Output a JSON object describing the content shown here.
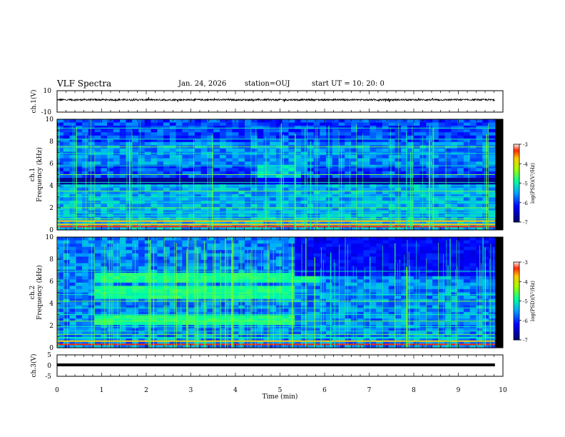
{
  "header": {
    "title": "VLF Spectra",
    "date": "Jan. 24, 2026",
    "station": "station=OUJ",
    "start": "start  UT  =    10: 20: 0"
  },
  "chart_data": [
    {
      "type": "line",
      "name": "channel-1-waveform",
      "ylabel": "ch.1(V)",
      "ylim": [
        -10,
        10
      ],
      "yticks": [
        "10",
        "-10"
      ],
      "mean_level": 1.5,
      "noise_amplitude": 0.8
    },
    {
      "type": "heatmap",
      "name": "channel-1-spectrogram",
      "ylabel_top": "ch.1",
      "ylabel": "Frequency  (kHz)",
      "ylim": [
        0,
        10
      ],
      "yticks": [
        "0",
        "2",
        "4",
        "6",
        "8",
        "10"
      ],
      "colorbar": {
        "label": "log(PSD)(V²/Hz)",
        "range": [
          -7,
          -3
        ],
        "ticks": [
          "-3",
          "-4",
          "-5",
          "-6",
          "-7"
        ]
      },
      "lines_khz": [
        0.3,
        0.5,
        0.8,
        1.0,
        1.3,
        1.6,
        2.0,
        2.5,
        3.0,
        3.5,
        4.0,
        4.3,
        5.0,
        5.8,
        6.9,
        7.5,
        8.2,
        9.2
      ],
      "features": {
        "sferics_dense": true,
        "band_ends_min": 5.4
      }
    },
    {
      "type": "heatmap",
      "name": "channel-2-spectrogram",
      "ylabel_top": "ch.2",
      "ylabel": "Frequency  (kHz)",
      "ylim": [
        0,
        10
      ],
      "yticks": [
        "0",
        "2",
        "4",
        "6",
        "8",
        "10"
      ],
      "colorbar": {
        "label": "log(PSD)(V²/Hz)",
        "range": [
          -7,
          -3
        ],
        "ticks": [
          "-3",
          "-4",
          "-5",
          "-6",
          "-7"
        ]
      },
      "lines_khz": [
        0.3,
        0.6,
        0.9,
        1.2,
        1.5,
        1.9,
        2.4,
        3.0,
        3.6,
        4.2,
        4.8,
        6.9
      ],
      "features": {
        "emission_bands_khz": [
          [
            2.2,
            3.0
          ],
          [
            4.5,
            5.6
          ],
          [
            6.0,
            6.8
          ]
        ],
        "emission_end_min": 5.35
      }
    },
    {
      "type": "line",
      "name": "channel-3-waveform",
      "ylabel": "ch.3(V)",
      "ylim": [
        -5,
        5
      ],
      "yticks": [
        "5",
        "0",
        "-5"
      ],
      "mean_level": 0
    },
    {
      "type": "axis",
      "name": "time-axis",
      "xlabel": "Time  (min)",
      "xlim": [
        0,
        10
      ],
      "xticks": [
        "0",
        "1",
        "2",
        "3",
        "4",
        "5",
        "6",
        "7",
        "8",
        "9",
        "10"
      ]
    }
  ]
}
